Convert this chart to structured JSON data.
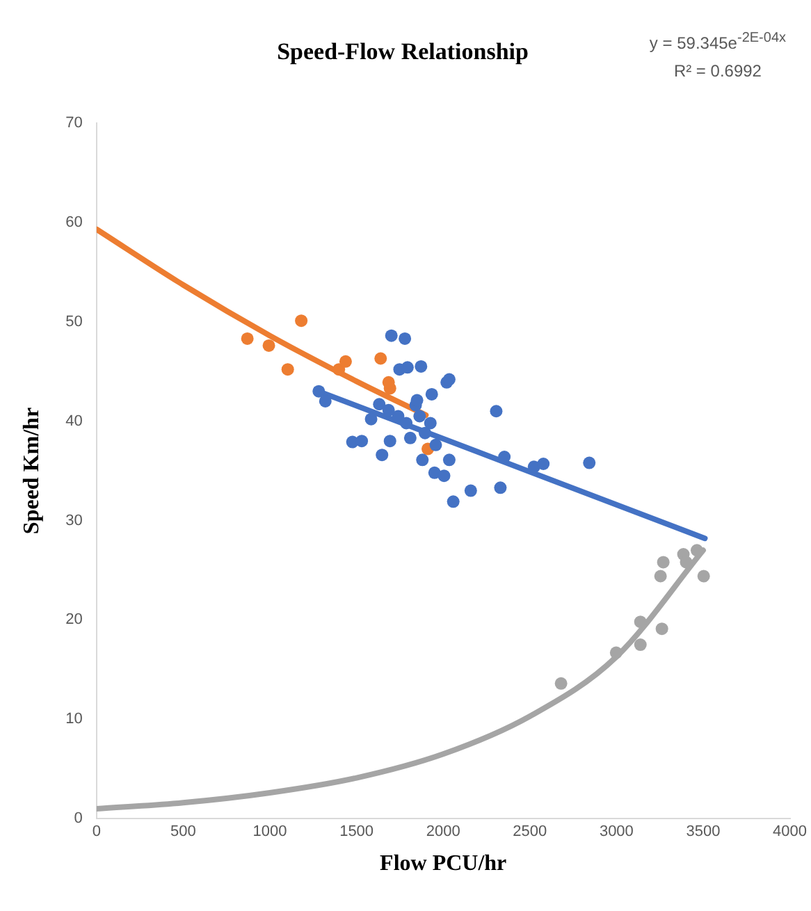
{
  "chart_data": {
    "type": "scatter",
    "title": "Speed-Flow Relationship",
    "xlabel": "Flow PCU/hr",
    "ylabel": "Speed Km/hr",
    "annotations": [
      "y = 59.345e$^{-2E-04x}$",
      "R² = 0.6992"
    ],
    "xlim": [
      0,
      4000
    ],
    "xticks": [
      0,
      500,
      1000,
      1500,
      2000,
      2500,
      3000,
      3500,
      4000
    ],
    "ylim": [
      0,
      70
    ],
    "yticks": [
      0,
      10,
      20,
      30,
      40,
      50,
      60,
      70
    ],
    "grid": false,
    "legend": false,
    "marker": "circle",
    "series": [
      {
        "color": "#4472c4",
        "x": [
          1282,
          1320,
          1476,
          1530,
          1584,
          1631,
          1647,
          1693,
          1701,
          1779,
          1748,
          1794,
          1872,
          1740,
          1787,
          1810,
          1841,
          1864,
          1880,
          1895,
          1926,
          1934,
          1950,
          2005,
          2020,
          2035,
          2035,
          2058,
          2159,
          2306,
          2330,
          2353,
          2524,
          2578,
          2843,
          1957,
          1849,
          1685
        ],
        "values": [
          43.0,
          42.0,
          37.9,
          38.0,
          40.2,
          41.7,
          36.6,
          38.0,
          48.6,
          48.3,
          45.2,
          45.4,
          45.5,
          40.5,
          39.8,
          38.3,
          41.6,
          40.5,
          36.1,
          38.8,
          39.8,
          42.7,
          34.8,
          34.5,
          43.9,
          44.2,
          36.1,
          31.9,
          33.0,
          41.0,
          33.3,
          36.4,
          35.4,
          35.7,
          35.8,
          37.6,
          42.1,
          41.1
        ]
      },
      {
        "color": "#ed7d31",
        "x": [
          870,
          994,
          1103,
          1181,
          1398,
          1437,
          1639,
          1693,
          1685,
          1911
        ],
        "values": [
          48.3,
          47.6,
          45.2,
          50.1,
          45.2,
          46.0,
          46.3,
          43.3,
          43.9,
          37.2
        ]
      },
      {
        "color": "#a5a5a5",
        "x": [
          2680,
          2998,
          3138,
          3138,
          3262,
          3254,
          3270,
          3386,
          3402,
          3464,
          3503
        ],
        "values": [
          13.6,
          16.7,
          19.8,
          17.5,
          19.1,
          24.4,
          25.8,
          26.6,
          25.8,
          27.0,
          24.4
        ]
      },
      {
        "type": "line",
        "marker": "none",
        "color": "#ed7d31",
        "x": [
          0,
          500,
          1000,
          1500,
          1900
        ],
        "values": [
          59.3,
          53.7,
          48.6,
          44.0,
          40.6
        ]
      },
      {
        "type": "line",
        "marker": "none",
        "color": "#4472c4",
        "x": [
          1280,
          3510
        ],
        "values": [
          43.0,
          28.2
        ]
      },
      {
        "type": "line",
        "marker": "none",
        "color": "#a5a5a5",
        "x": [
          0,
          500,
          1000,
          1500,
          2000,
          2500,
          3000,
          3500
        ],
        "values": [
          1.0,
          1.6,
          2.6,
          4.1,
          6.5,
          10.3,
          16.3,
          27.0
        ]
      }
    ]
  }
}
